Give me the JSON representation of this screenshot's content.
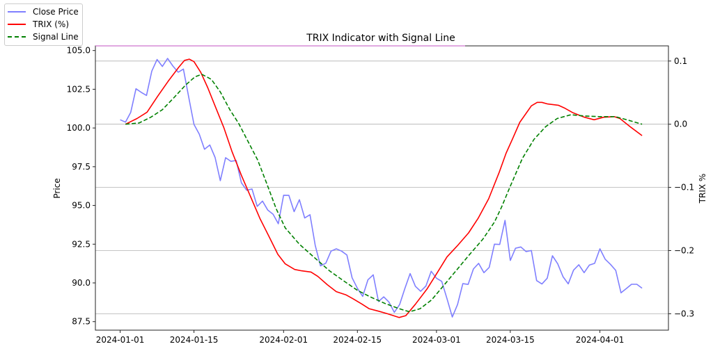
{
  "chart_data": {
    "type": "line",
    "title": "TRIX Indicator with Signal Line",
    "xlabel": "",
    "ylabel": "Price",
    "ylabel_right": "TRIX %",
    "x_start_date": "2024-01-01",
    "x_tick_labels": [
      "2024-01-01",
      "2024-01-15",
      "2024-02-01",
      "2024-02-15",
      "2024-03-01",
      "2024-03-15",
      "2024-04-01"
    ],
    "x_tick_days": [
      0,
      14,
      31,
      45,
      60,
      74,
      91
    ],
    "xlim_days": [
      -4.7,
      104
    ],
    "y_left": {
      "ylim": [
        86.95,
        105.3
      ],
      "ticks": [
        105.0,
        102.5,
        100.0,
        97.5,
        95.0,
        92.5,
        90.0,
        87.5
      ],
      "tick_labels": [
        "105.0",
        "102.5",
        "100.0",
        "97.5",
        "95.0",
        "92.5",
        "90.0",
        "87.5"
      ]
    },
    "y_right": {
      "ylim": [
        -0.326,
        0.124
      ],
      "ticks": [
        0.1,
        0.0,
        -0.1,
        -0.2,
        -0.3
      ],
      "tick_labels": [
        "0.1",
        "0.0",
        "−0.1",
        "−0.2",
        "−0.3"
      ]
    },
    "grid": "horizontal on right axis",
    "legend": {
      "placement": "outside top-left",
      "entries": [
        "Close Price",
        "TRIX (%)",
        "Signal Line"
      ]
    },
    "series": [
      {
        "name": "Close Price",
        "axis": "left",
        "color": "#7f7fff",
        "style": "solid",
        "values": [
          100.53,
          100.38,
          101.0,
          102.53,
          102.3,
          102.1,
          103.67,
          104.42,
          103.97,
          104.49,
          104.0,
          103.6,
          103.8,
          102.0,
          100.23,
          99.6,
          98.63,
          98.9,
          98.1,
          96.6,
          98.08,
          97.85,
          97.9,
          96.46,
          95.98,
          96.06,
          94.94,
          95.28,
          94.7,
          94.43,
          93.82,
          95.66,
          95.65,
          94.6,
          95.37,
          94.19,
          94.4,
          92.43,
          91.1,
          91.27,
          92.05,
          92.2,
          92.05,
          91.8,
          90.33,
          89.65,
          89.13,
          90.2,
          90.52,
          88.8,
          89.1,
          88.76,
          88.1,
          88.6,
          89.63,
          90.6,
          89.78,
          89.46,
          89.8,
          90.75,
          90.3,
          90.1,
          88.98,
          87.8,
          88.6,
          89.95,
          89.9,
          90.9,
          91.26,
          90.66,
          91.0,
          92.5,
          92.48,
          94.04,
          91.45,
          92.24,
          92.32,
          92.02,
          92.09,
          90.15,
          89.93,
          90.3,
          91.75,
          91.23,
          90.4,
          89.94,
          90.82,
          91.17,
          90.66,
          91.15,
          91.26,
          92.2,
          91.53,
          91.2,
          90.81,
          89.36,
          89.63,
          89.91,
          89.91,
          89.66
        ]
      },
      {
        "name": "TRIX (%)",
        "axis": "right",
        "color": "#ff0000",
        "style": "solid",
        "points": [
          [
            1,
            0.0
          ],
          [
            3.2,
            0.009
          ],
          [
            5.1,
            0.019
          ],
          [
            7.1,
            0.044
          ],
          [
            9.1,
            0.068
          ],
          [
            11.1,
            0.09
          ],
          [
            12.2,
            0.101
          ],
          [
            13.1,
            0.103
          ],
          [
            14,
            0.099
          ],
          [
            15.3,
            0.082
          ],
          [
            16.6,
            0.058
          ],
          [
            18.1,
            0.027
          ],
          [
            19.7,
            -0.006
          ],
          [
            21.2,
            -0.043
          ],
          [
            23,
            -0.081
          ],
          [
            24.7,
            -0.114
          ],
          [
            26.5,
            -0.149
          ],
          [
            28.3,
            -0.179
          ],
          [
            29.9,
            -0.206
          ],
          [
            31.3,
            -0.221
          ],
          [
            33.1,
            -0.23
          ],
          [
            34.4,
            -0.232
          ],
          [
            36.2,
            -0.234
          ],
          [
            37.5,
            -0.241
          ],
          [
            39.3,
            -0.254
          ],
          [
            41,
            -0.265
          ],
          [
            42.8,
            -0.27
          ],
          [
            44.1,
            -0.276
          ],
          [
            45.9,
            -0.285
          ],
          [
            47.2,
            -0.292
          ],
          [
            49,
            -0.296
          ],
          [
            50.7,
            -0.3
          ],
          [
            52.9,
            -0.306
          ],
          [
            54.2,
            -0.303
          ],
          [
            56,
            -0.285
          ],
          [
            58.2,
            -0.261
          ],
          [
            60,
            -0.237
          ],
          [
            62,
            -0.21
          ],
          [
            63.9,
            -0.193
          ],
          [
            66.1,
            -0.172
          ],
          [
            67.9,
            -0.149
          ],
          [
            69.9,
            -0.118
          ],
          [
            71.9,
            -0.076
          ],
          [
            73.2,
            -0.046
          ],
          [
            74.5,
            -0.022
          ],
          [
            75.8,
            0.003
          ],
          [
            78,
            0.029
          ],
          [
            79.1,
            0.0345
          ],
          [
            80,
            0.0345
          ],
          [
            81.1,
            0.032
          ],
          [
            83.1,
            0.03
          ],
          [
            84.2,
            0.026
          ],
          [
            85.9,
            0.018
          ],
          [
            88.1,
            0.011
          ],
          [
            89.9,
            0.007
          ],
          [
            91.7,
            0.011
          ],
          [
            93.7,
            0.012
          ],
          [
            94.8,
            0.009
          ],
          [
            96.9,
            -0.005
          ],
          [
            99,
            -0.018
          ]
        ]
      },
      {
        "name": "Signal Line",
        "axis": "right",
        "color": "#008000",
        "style": "dashed",
        "points": [
          [
            1,
            0.0
          ],
          [
            3.6,
            0.002
          ],
          [
            5.8,
            0.011
          ],
          [
            8,
            0.023
          ],
          [
            10.2,
            0.042
          ],
          [
            12.4,
            0.062
          ],
          [
            14.2,
            0.075
          ],
          [
            15.5,
            0.079
          ],
          [
            17.3,
            0.071
          ],
          [
            19,
            0.051
          ],
          [
            20.8,
            0.023
          ],
          [
            22.5,
            0.001
          ],
          [
            24.3,
            -0.028
          ],
          [
            26.1,
            -0.057
          ],
          [
            27.8,
            -0.094
          ],
          [
            29.6,
            -0.134
          ],
          [
            31.3,
            -0.164
          ],
          [
            34,
            -0.19
          ],
          [
            37.1,
            -0.213
          ],
          [
            39.7,
            -0.232
          ],
          [
            42.4,
            -0.248
          ],
          [
            45,
            -0.263
          ],
          [
            47.6,
            -0.274
          ],
          [
            50.3,
            -0.284
          ],
          [
            52.9,
            -0.292
          ],
          [
            54.9,
            -0.297
          ],
          [
            56.9,
            -0.292
          ],
          [
            59.1,
            -0.278
          ],
          [
            61.3,
            -0.256
          ],
          [
            63.5,
            -0.234
          ],
          [
            66.1,
            -0.208
          ],
          [
            68.8,
            -0.182
          ],
          [
            71,
            -0.155
          ],
          [
            72.3,
            -0.132
          ],
          [
            74,
            -0.098
          ],
          [
            76.3,
            -0.054
          ],
          [
            78.5,
            -0.024
          ],
          [
            80.7,
            -0.004
          ],
          [
            82.9,
            0.009
          ],
          [
            85.5,
            0.015
          ],
          [
            88.1,
            0.013
          ],
          [
            90.8,
            0.012
          ],
          [
            93.9,
            0.012
          ],
          [
            96.1,
            0.007
          ],
          [
            99,
            0.0
          ]
        ]
      }
    ]
  }
}
